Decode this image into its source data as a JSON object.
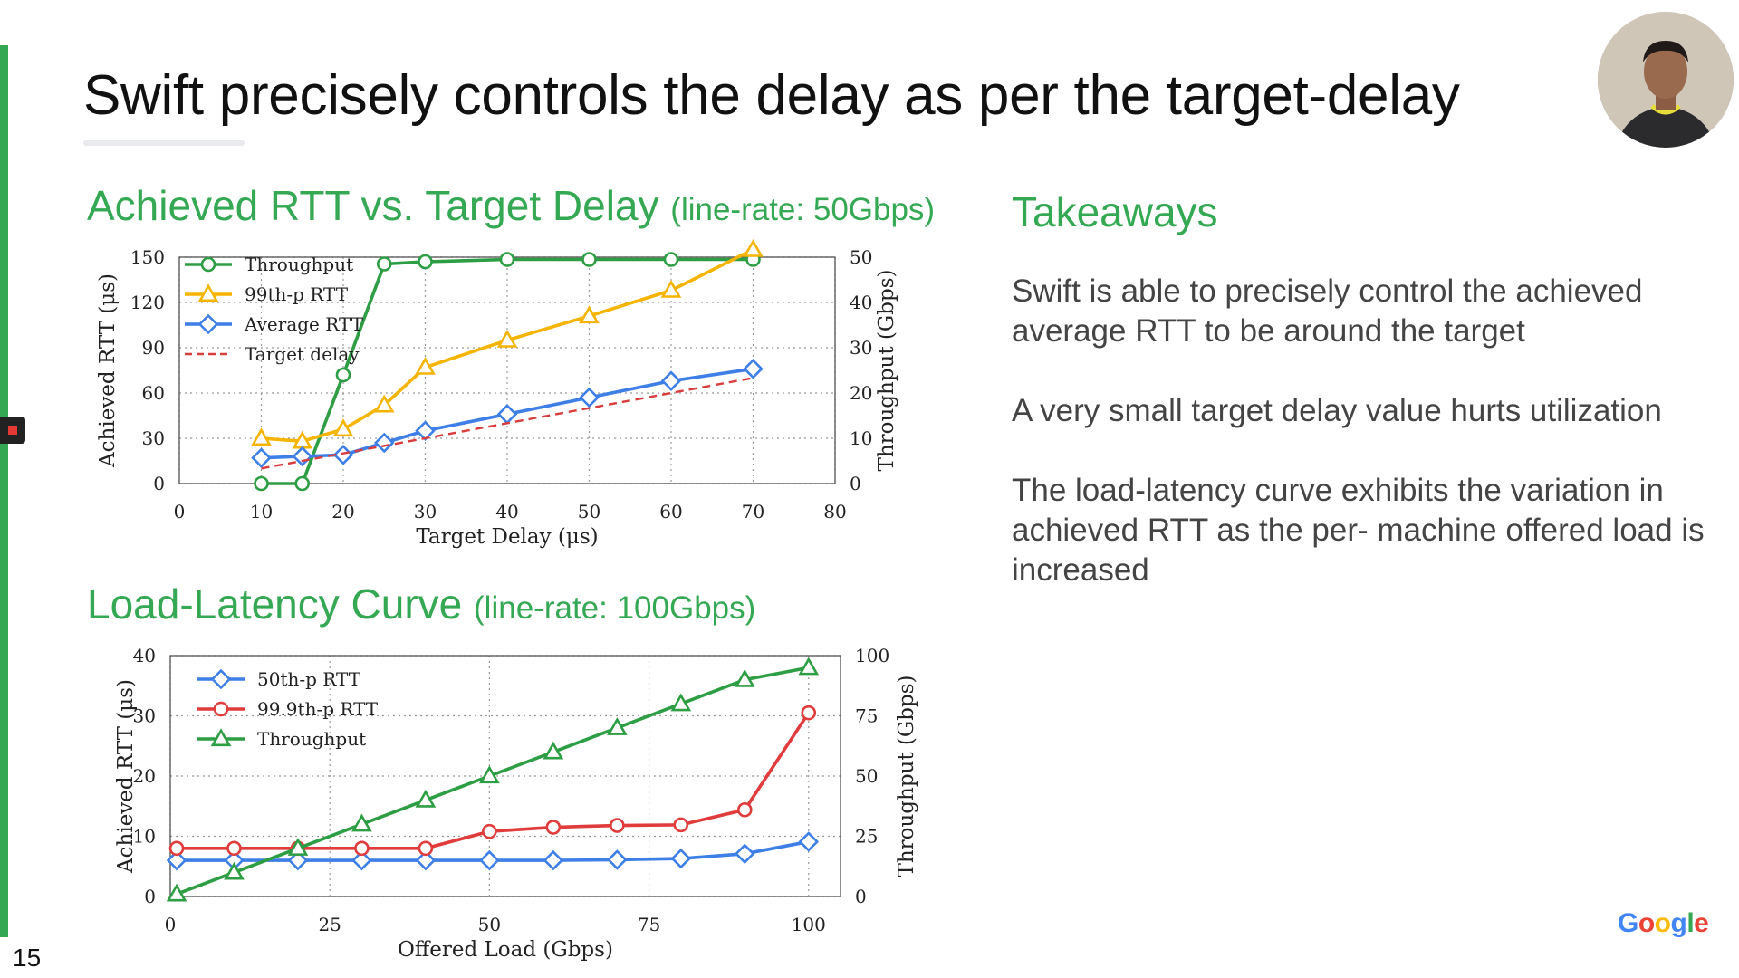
{
  "slide": {
    "title": "Swift precisely controls the delay as per the target-delay",
    "number": "15",
    "brand": "Google",
    "brand_colors": [
      "#4285F4",
      "#EA4335",
      "#FBBC05",
      "#4285F4",
      "#34A853",
      "#EA4335"
    ],
    "accent_color": "#34a853"
  },
  "left_heading": {
    "rtt_title": "Achieved RTT vs. Target Delay",
    "rtt_subtitle": "(line-rate: 50Gbps)",
    "load_title": "Load-Latency Curve",
    "load_subtitle": "(line-rate: 100Gbps)"
  },
  "takeaways": {
    "title": "Takeaways",
    "items": [
      "Swift is able to precisely control the achieved average RTT to be around the target",
      "A very small target delay value hurts utilization",
      "The load-latency curve exhibits the variation in achieved RTT as the per- machine offered load is increased"
    ]
  },
  "chart_data": [
    {
      "type": "line",
      "xlabel": "Target Delay (μs)",
      "ylabel": "Achieved RTT (μs)",
      "y2label": "Throughput (Gbps)",
      "xlim": [
        0,
        80
      ],
      "ylim": [
        0,
        150
      ],
      "y2lim": [
        0,
        50
      ],
      "xticks": [
        0,
        10,
        20,
        30,
        40,
        50,
        60,
        70,
        80
      ],
      "yticks": [
        0,
        30,
        60,
        90,
        120,
        150
      ],
      "y2ticks": [
        0,
        10,
        20,
        30,
        40,
        50
      ],
      "grid": true,
      "legend_position": "top-left",
      "x": [
        10,
        15,
        20,
        25,
        30,
        40,
        50,
        60,
        70
      ],
      "series": [
        {
          "name": "Throughput",
          "axis": "right",
          "color": "#2e9e44",
          "marker": "circle",
          "dash": false,
          "values": [
            0,
            0,
            24,
            48.5,
            49,
            49.5,
            49.5,
            49.5,
            49.5
          ]
        },
        {
          "name": "99th-p RTT",
          "axis": "left",
          "color": "#f5b400",
          "marker": "triangle",
          "dash": false,
          "values": [
            30,
            28,
            36,
            52,
            77,
            95,
            111,
            128,
            155
          ]
        },
        {
          "name": "Average RTT",
          "axis": "left",
          "color": "#3d7fe6",
          "marker": "diamond",
          "dash": false,
          "values": [
            17,
            18,
            19,
            27,
            35,
            46,
            57,
            68,
            76
          ]
        },
        {
          "name": "Target delay",
          "axis": "left",
          "color": "#d93c3c",
          "marker": "none",
          "dash": true,
          "values": [
            10,
            15,
            20,
            25,
            30,
            40,
            50,
            60,
            70
          ]
        }
      ]
    },
    {
      "type": "line",
      "xlabel": "Offered Load (Gbps)",
      "ylabel": "Achieved RTT (μs)",
      "y2label": "Throughput (Gbps)",
      "xlim": [
        0,
        105
      ],
      "ylim": [
        0,
        40
      ],
      "y2lim": [
        0,
        100
      ],
      "xticks": [
        0,
        25,
        50,
        75,
        100
      ],
      "yticks": [
        0,
        10,
        20,
        30,
        40
      ],
      "y2ticks": [
        0,
        25,
        50,
        75,
        100
      ],
      "grid": true,
      "legend_position": "top-left",
      "x": [
        1,
        10,
        20,
        30,
        40,
        50,
        60,
        70,
        80,
        90,
        100
      ],
      "series": [
        {
          "name": "50th-p RTT",
          "axis": "left",
          "color": "#3d7fe6",
          "marker": "diamond",
          "dash": false,
          "values": [
            6,
            6,
            6,
            6,
            6,
            6,
            6,
            6.1,
            6.3,
            7.1,
            9.1
          ]
        },
        {
          "name": "99.9th-p RTT",
          "axis": "left",
          "color": "#e03c3c",
          "marker": "circle",
          "dash": false,
          "values": [
            8,
            8,
            8,
            8,
            8,
            10.8,
            11.5,
            11.8,
            11.9,
            14.4,
            30.5
          ]
        },
        {
          "name": "Throughput",
          "axis": "right",
          "color": "#2e9e44",
          "marker": "triangle",
          "dash": false,
          "values": [
            1,
            10,
            20,
            30,
            40,
            50,
            60,
            70,
            80,
            90,
            95
          ]
        }
      ]
    }
  ]
}
